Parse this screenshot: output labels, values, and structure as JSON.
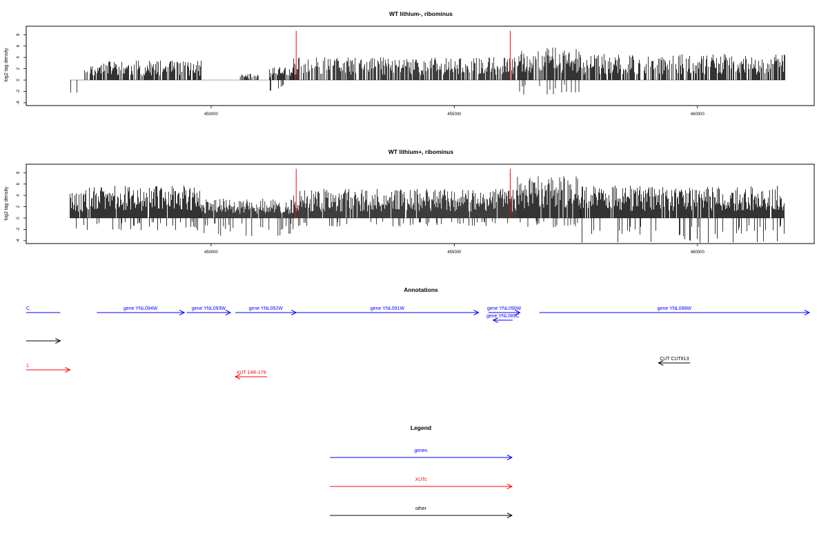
{
  "chart_data": [
    {
      "type": "bar",
      "title": "WT lithium-, ribominus",
      "ylabel": "log2 tag density",
      "xlabel": "",
      "xlim": [
        446200,
        462400
      ],
      "ylim": [
        -4.5,
        9.5
      ],
      "yticks": [
        -4,
        -2,
        0,
        2,
        4,
        6,
        8
      ],
      "xticks": [
        450000,
        455000,
        460000
      ],
      "marker_lines": [
        451750,
        456150
      ],
      "marker_color": "#ff0000",
      "seed": 11,
      "density": 0.75,
      "bar_color": "#000000",
      "axis_line_color": "#888888",
      "regions": [
        {
          "from": 447100,
          "to": 447350,
          "pos": 0.0,
          "neg": 2.5
        },
        {
          "from": 447400,
          "to": 449800,
          "pos": 3.0,
          "neg": 0.0
        },
        {
          "from": 450600,
          "to": 451000,
          "pos": 1.0,
          "neg": 0.0
        },
        {
          "from": 451200,
          "to": 451700,
          "pos": 2.0,
          "neg": 2.5
        },
        {
          "from": 451700,
          "to": 456300,
          "pos": 3.5,
          "neg": 0.0
        },
        {
          "from": 456300,
          "to": 457600,
          "pos": 5.0,
          "neg": 2.5
        },
        {
          "from": 457600,
          "to": 461800,
          "pos": 4.0,
          "neg": 0.0
        }
      ]
    },
    {
      "type": "bar",
      "title": "WT lithium+, ribominus",
      "ylabel": "log2 tag density",
      "xlabel": "",
      "xlim": [
        446200,
        462400
      ],
      "ylim": [
        -4.5,
        9.5
      ],
      "yticks": [
        -4,
        -2,
        0,
        2,
        4,
        6,
        8
      ],
      "xticks": [
        450000,
        455000,
        460000
      ],
      "marker_lines": [
        451750,
        456150
      ],
      "marker_color": "#ff0000",
      "seed": 29,
      "density": 0.95,
      "bar_color": "#000000",
      "axis_line_color": "#888888",
      "regions": [
        {
          "from": 447100,
          "to": 447400,
          "pos": 4.0,
          "neg": 3.0
        },
        {
          "from": 447400,
          "to": 449800,
          "pos": 5.0,
          "neg": 2.0
        },
        {
          "from": 449800,
          "to": 451700,
          "pos": 3.0,
          "neg": 3.0
        },
        {
          "from": 451700,
          "to": 456300,
          "pos": 4.5,
          "neg": 1.5
        },
        {
          "from": 456300,
          "to": 457600,
          "pos": 6.5,
          "neg": 1.5
        },
        {
          "from": 457600,
          "to": 461800,
          "pos": 5.0,
          "neg": 4.0
        }
      ]
    }
  ],
  "annotations": {
    "title": "Annotations",
    "xlim": [
      446200,
      462400
    ],
    "colors": {
      "gene": "#0000ff",
      "xut": "#ff0000",
      "other": "#000000"
    },
    "items": [
      {
        "label": "C",
        "start": 446200,
        "end": 446900,
        "row": 0,
        "cat": "gene",
        "strand": "none"
      },
      {
        "label": "gene YNL094W",
        "start": 447650,
        "end": 449450,
        "row": 0,
        "cat": "gene",
        "strand": "+"
      },
      {
        "label": "gene YNL093W",
        "start": 449500,
        "end": 450400,
        "row": 0,
        "cat": "gene",
        "strand": "+"
      },
      {
        "label": "gene YNL092W",
        "start": 450500,
        "end": 451750,
        "row": 0,
        "cat": "gene",
        "strand": "+"
      },
      {
        "label": "gene YNL091W",
        "start": 451750,
        "end": 455500,
        "row": 0,
        "cat": "gene",
        "strand": "+"
      },
      {
        "label": "gene YNL090W",
        "start": 455700,
        "end": 456350,
        "row": 0,
        "cat": "gene",
        "strand": "+"
      },
      {
        "label": "gene YNL089C",
        "start": 455800,
        "end": 456200,
        "row": 1,
        "cat": "gene",
        "strand": "-"
      },
      {
        "label": "gene YNL088W",
        "start": 456750,
        "end": 462300,
        "row": 0,
        "cat": "gene",
        "strand": "+"
      },
      {
        "label": "",
        "start": 446200,
        "end": 446900,
        "row": 2,
        "cat": "other",
        "strand": "+"
      },
      {
        "label": "CUT CUT813",
        "start": 459200,
        "end": 459850,
        "row": 3,
        "cat": "other",
        "strand": "-"
      },
      {
        "label": "1",
        "start": 446200,
        "end": 447100,
        "row": 4,
        "cat": "xut",
        "strand": "+"
      },
      {
        "label": "XUT 14R-179",
        "start": 450500,
        "end": 451150,
        "row": 5,
        "cat": "xut",
        "strand": "-"
      }
    ]
  },
  "legend": {
    "title": "Legend",
    "items": [
      {
        "label": "genes",
        "cat": "gene"
      },
      {
        "label": "XUTs",
        "cat": "xut"
      },
      {
        "label": "other",
        "cat": "other"
      }
    ]
  }
}
